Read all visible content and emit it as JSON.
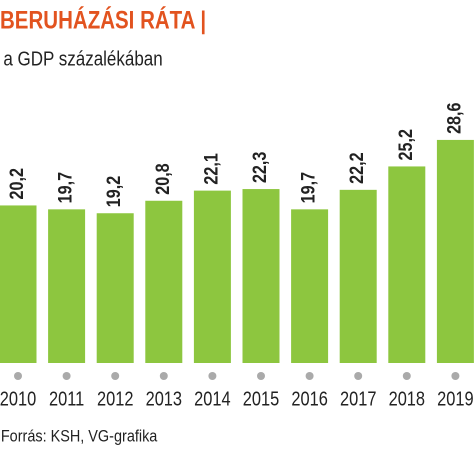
{
  "chart_data": {
    "type": "bar",
    "title": "BERUHÁZÁSI RÁTA |",
    "subtitle": "a GDP százalékában",
    "categories": [
      "2010",
      "2011",
      "2012",
      "2013",
      "2014",
      "2015",
      "2016",
      "2017",
      "2018",
      "2019"
    ],
    "values": [
      20.2,
      19.7,
      19.2,
      20.8,
      22.1,
      22.3,
      19.7,
      22.2,
      25.2,
      28.6
    ],
    "value_labels": [
      "20,2",
      "19,7",
      "19,2",
      "20,8",
      "22,1",
      "22,3",
      "19,7",
      "22,2",
      "25,2",
      "28,6"
    ],
    "color": "#8dc63f",
    "source": "Forrás: KSH, VG-grafika"
  }
}
